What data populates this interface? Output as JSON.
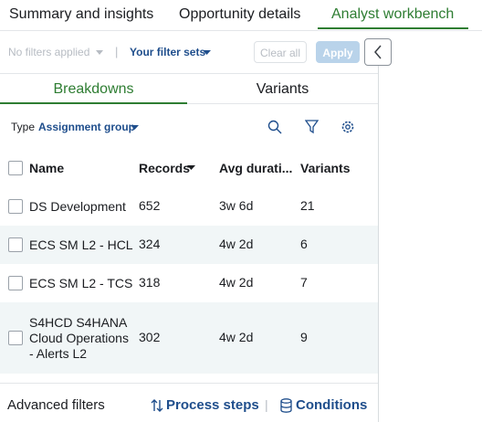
{
  "tabs": [
    "Summary and insights",
    "Opportunity details",
    "Analyst workbench"
  ],
  "filters": {
    "no_filters": "No filters applied",
    "filter_sets": "Your filter sets",
    "clear_all": "Clear all",
    "apply": "Apply"
  },
  "subtabs": [
    "Breakdowns",
    "Variants"
  ],
  "type_row": {
    "label": "Type",
    "value": "Assignment group"
  },
  "table": {
    "columns": [
      "Name",
      "Records",
      "Avg durati...",
      "Variants"
    ],
    "rows": [
      [
        [
          "DS Development"
        ],
        652,
        "3w 6d",
        21
      ],
      [
        [
          "ECS SM L2 - HCL"
        ],
        324,
        "4w 2d",
        6
      ],
      [
        [
          "ECS SM L2 - TCS"
        ],
        318,
        "4w 2d",
        7
      ],
      [
        [
          "S4HCD S4HANA",
          "Cloud Operations",
          "- Alerts L2"
        ],
        302,
        "4w 2d",
        9
      ]
    ]
  },
  "footer": {
    "advanced": "Advanced filters",
    "process_steps": "Process steps",
    "conditions": "Conditions"
  }
}
